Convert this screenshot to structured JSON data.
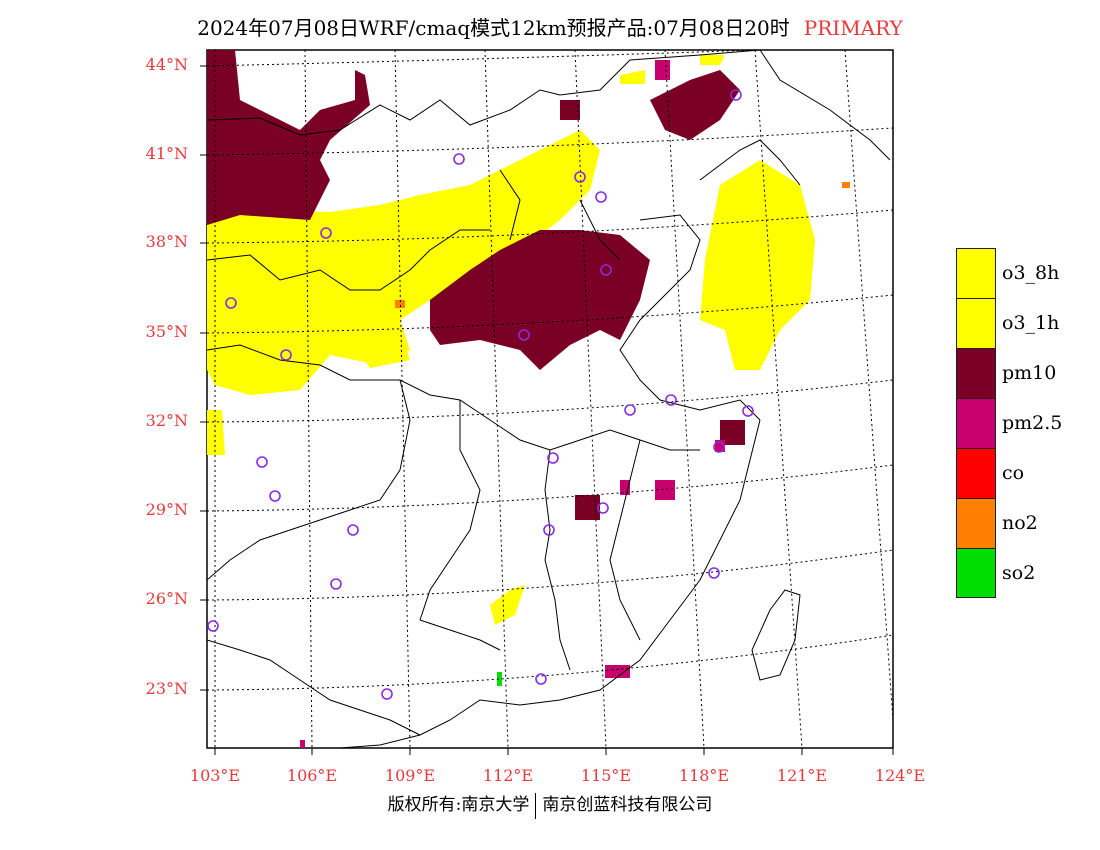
{
  "title": {
    "text": "2024年07月08日WRF/cmaq模式12km预报产品:07月08日20时",
    "tag": "PRIMARY",
    "tag_color": "#e8393b"
  },
  "lat_labels": [
    "44°N",
    "41°N",
    "38°N",
    "35°N",
    "32°N",
    "29°N",
    "26°N",
    "23°N"
  ],
  "lon_labels": [
    "103°E",
    "106°E",
    "109°E",
    "112°E",
    "115°E",
    "118°E",
    "121°E",
    "124°E"
  ],
  "legend": [
    {
      "label": "o3_8h",
      "color": "#ffff00"
    },
    {
      "label": "o3_1h",
      "color": "#ffff00"
    },
    {
      "label": "pm10",
      "color": "#7a0026"
    },
    {
      "label": "pm2.5",
      "color": "#c8006e"
    },
    {
      "label": "co",
      "color": "#ff0000"
    },
    {
      "label": "no2",
      "color": "#ff7f00"
    },
    {
      "label": "so2",
      "color": "#00dd00"
    }
  ],
  "footer": {
    "left": "版权所有:南京大学",
    "right": "南京创蓝科技有限公司"
  },
  "map": {
    "region": "China (eastern)",
    "station_marker_color": "#8a2be2",
    "region_colors": {
      "o3": "#ffff00",
      "pm10": "#7a0026",
      "pm25": "#c8006e",
      "no2": "#ff7f00",
      "so2": "#00dd00"
    }
  }
}
